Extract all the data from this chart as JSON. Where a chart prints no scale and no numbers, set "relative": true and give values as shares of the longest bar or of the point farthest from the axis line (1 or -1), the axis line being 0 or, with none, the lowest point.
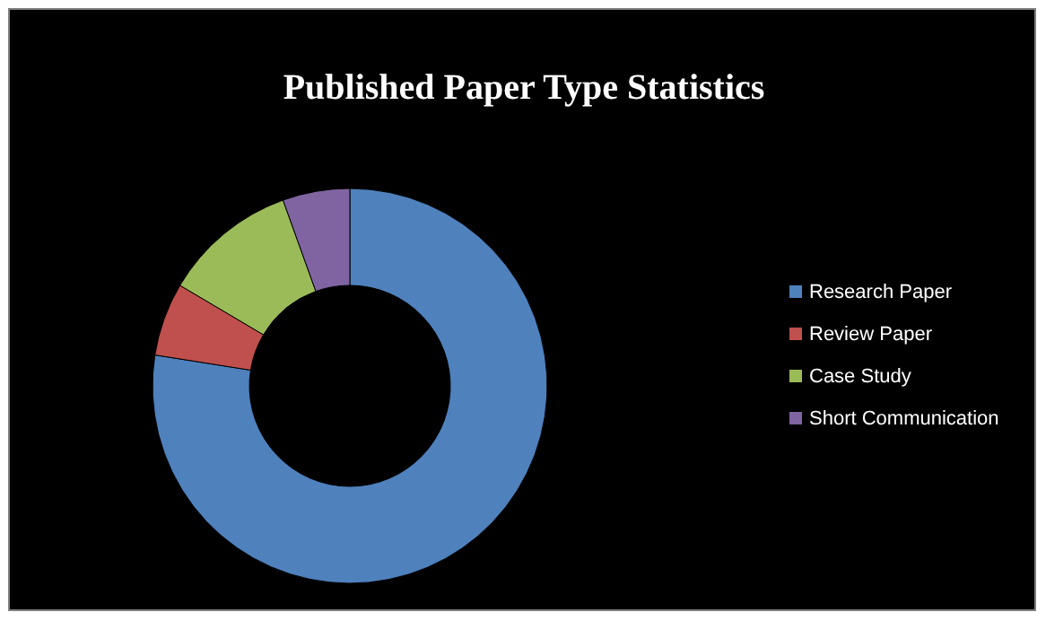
{
  "chart_data": {
    "type": "donut",
    "title": "Published Paper Type Statistics",
    "relative": true,
    "categories": [
      "Research Paper",
      "Review Paper",
      "Case Study",
      "Short Communication"
    ],
    "values": [
      77.5,
      6,
      11,
      5.5
    ],
    "colors": [
      "#4f81bd",
      "#c0504d",
      "#9bbb59",
      "#8064a2"
    ],
    "legend": "right"
  }
}
